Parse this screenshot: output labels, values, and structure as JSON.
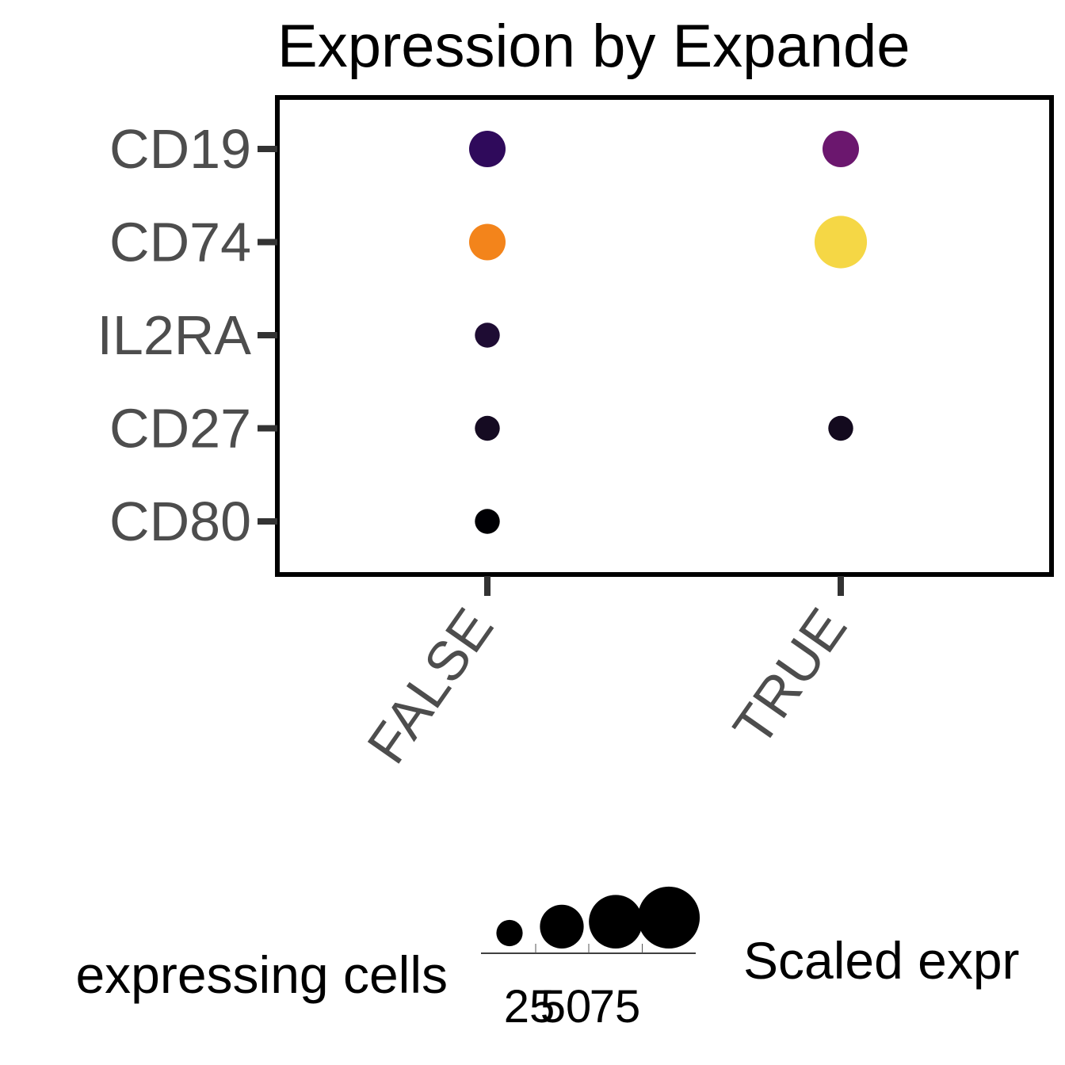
{
  "chart_data": {
    "type": "scatter",
    "title": "Expression by Expande",
    "xlabel": "",
    "ylabel": "",
    "categories_x": [
      "FALSE",
      "TRUE"
    ],
    "categories_y": [
      "CD19",
      "CD74",
      "IL2RA",
      "CD27",
      "CD80"
    ],
    "points": [
      {
        "x": "FALSE",
        "y": "CD19",
        "pct": 30,
        "color": "#2f0a5b"
      },
      {
        "x": "TRUE",
        "y": "CD19",
        "pct": 30,
        "color": "#6b176e"
      },
      {
        "x": "FALSE",
        "y": "CD74",
        "pct": 30,
        "color": "#f3841b"
      },
      {
        "x": "TRUE",
        "y": "CD74",
        "pct": 62,
        "color": "#f5d745"
      },
      {
        "x": "FALSE",
        "y": "IL2RA",
        "pct": 14,
        "color": "#1e0c33"
      },
      {
        "x": "FALSE",
        "y": "CD27",
        "pct": 14,
        "color": "#150b22"
      },
      {
        "x": "TRUE",
        "y": "CD27",
        "pct": 14,
        "color": "#130a1e"
      },
      {
        "x": "FALSE",
        "y": "CD80",
        "pct": 14,
        "color": "#000004"
      }
    ],
    "size_legend": {
      "title": "expressing cells",
      "breaks": [
        25,
        50,
        75,
        100
      ],
      "labels": [
        "25",
        "50",
        "75",
        ""
      ]
    },
    "color_legend": {
      "title": "Scaled expr"
    },
    "grid": false,
    "legend_position": "bottom"
  }
}
